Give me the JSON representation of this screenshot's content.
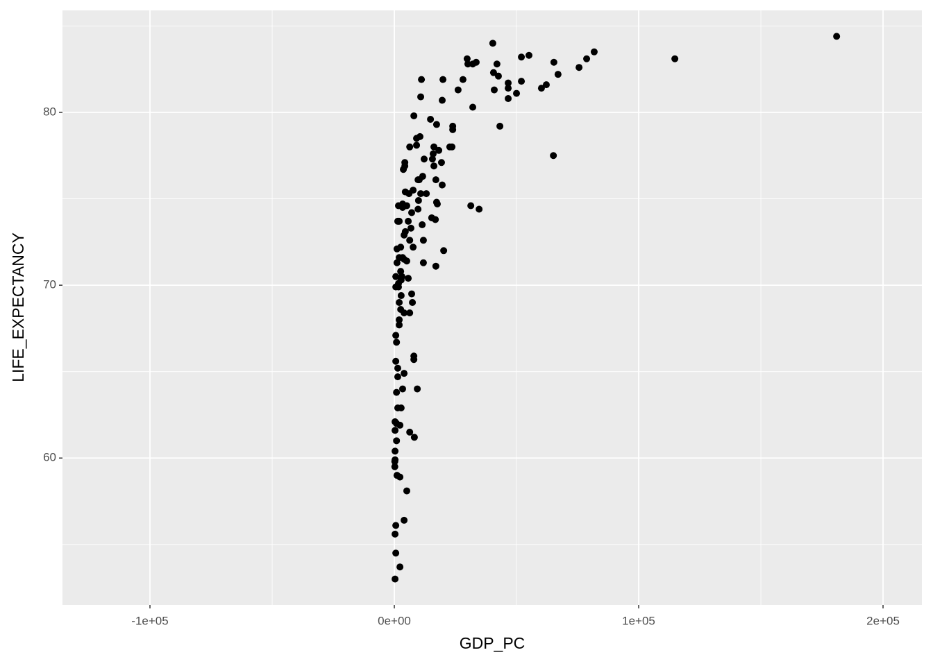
{
  "chart_data": {
    "type": "scatter",
    "xlabel": "GDP_PC",
    "ylabel": "LIFE_EXPECTANCY",
    "xlim": [
      -135800,
      215900
    ],
    "ylim": [
      51.5,
      85.9
    ],
    "xticks": [
      {
        "value": -100000,
        "label": "-1e+05"
      },
      {
        "value": 0,
        "label": "0e+00"
      },
      {
        "value": 100000,
        "label": "1e+05"
      },
      {
        "value": 200000,
        "label": "2e+05"
      }
    ],
    "yticks": [
      60,
      70,
      80
    ],
    "grid": true,
    "color": "#000000",
    "x": [
      181000,
      114800,
      81800,
      78700,
      75600,
      67000,
      65300,
      65100,
      62200,
      60200,
      55100,
      52000,
      52000,
      50000,
      46600,
      46600,
      46600,
      43200,
      42600,
      42000,
      40900,
      40600,
      40300,
      34700,
      31300,
      33500,
      32100,
      29800,
      30100,
      28100,
      26100,
      32100,
      23900,
      23900,
      23600,
      22700,
      20200,
      19900,
      19600,
      19600,
      19300,
      18200,
      17600,
      17300,
      17300,
      17000,
      17000,
      16800,
      15900,
      15600,
      16200,
      16200,
      15300,
      14800,
      13100,
      12200,
      11900,
      11900,
      11600,
      11400,
      10800,
      11100,
      10800,
      10500,
      10200,
      9900,
      9700,
      9700,
      9400,
      9100,
      9100,
      8200,
      8000,
      8000,
      8000,
      7400,
      7100,
      7700,
      7700,
      7100,
      6800,
      6300,
      6300,
      6300,
      6000,
      5700,
      5100,
      5100,
      5100,
      4500,
      4500,
      4300,
      4000,
      4000,
      4000,
      4000,
      4300,
      3700,
      3400,
      3400,
      3400,
      3400,
      3100,
      2800,
      2800,
      2600,
      2600,
      2600,
      2300,
      2000,
      2000,
      2000,
      2300,
      2000,
      1700,
      1400,
      1400,
      1400,
      1700,
      1100,
      2300,
      1100,
      1100,
      900,
      900,
      900,
      600,
      600,
      600,
      300,
      300,
      300,
      300,
      600,
      600,
      200,
      200,
      300,
      300,
      600,
      900,
      1400,
      1700,
      2000,
      1700,
      2800,
      4000,
      5700,
      6300
    ],
    "y": [
      84.4,
      83.1,
      83.5,
      83.1,
      82.6,
      82.2,
      82.9,
      77.5,
      81.6,
      81.4,
      83.3,
      83.2,
      81.8,
      81.1,
      81.7,
      81.4,
      80.8,
      79.2,
      82.1,
      82.8,
      81.3,
      82.3,
      84.0,
      74.4,
      74.6,
      82.9,
      82.8,
      83.1,
      82.8,
      81.9,
      81.3,
      80.3,
      79.2,
      79.0,
      78.0,
      78.0,
      72.0,
      81.9,
      80.7,
      75.8,
      77.1,
      77.8,
      74.7,
      74.8,
      79.3,
      76.1,
      71.1,
      73.8,
      77.6,
      77.3,
      76.9,
      78.0,
      73.9,
      79.6,
      75.3,
      77.3,
      72.6,
      71.3,
      76.3,
      73.5,
      75.3,
      81.9,
      80.9,
      78.6,
      76.1,
      74.9,
      74.4,
      76.1,
      64.0,
      78.5,
      78.1,
      61.2,
      79.8,
      65.7,
      65.9,
      69.0,
      69.5,
      75.5,
      72.2,
      74.2,
      73.3,
      68.4,
      61.5,
      78.0,
      75.3,
      73.7,
      74.6,
      71.4,
      58.1,
      75.4,
      73.1,
      76.9,
      56.4,
      72.9,
      68.4,
      64.9,
      77.1,
      76.7,
      71.6,
      74.7,
      74.5,
      64.0,
      70.5,
      69.4,
      62.9,
      72.2,
      70.8,
      68.6,
      61.9,
      67.7,
      68.0,
      73.7,
      53.7,
      69.0,
      73.7,
      62.9,
      65.2,
      73.7,
      74.6,
      59.0,
      58.9,
      71.3,
      72.1,
      61.0,
      62.0,
      63.8,
      70.5,
      67.1,
      65.6,
      53.0,
      55.6,
      59.9,
      60.4,
      56.1,
      54.5,
      59.8,
      59.5,
      61.6,
      62.1,
      69.9,
      66.7,
      64.7,
      69.9,
      71.6,
      70.1,
      70.3,
      71.5,
      70.4,
      72.6
    ]
  }
}
